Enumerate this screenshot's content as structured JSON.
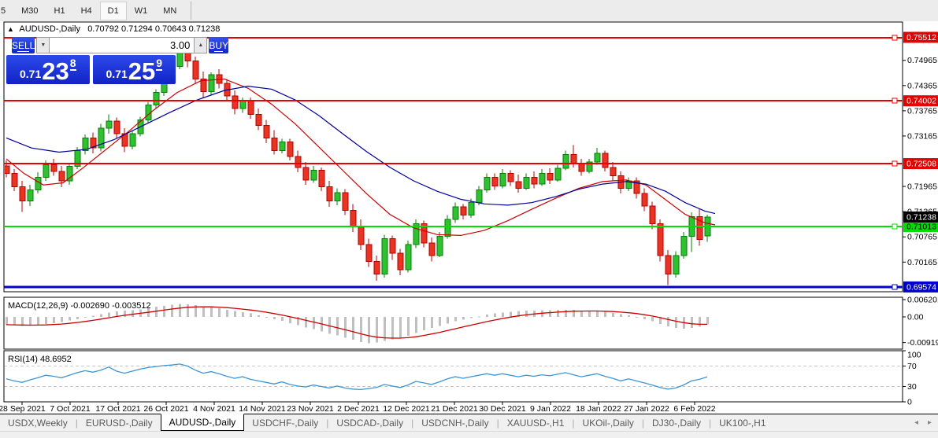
{
  "toolbar": {
    "timeframes": [
      "5",
      "M30",
      "H1",
      "H4",
      "D1",
      "W1",
      "MN"
    ],
    "active_timeframe": "D1"
  },
  "chart": {
    "title_symbol": "AUDUSD-,Daily",
    "title_ohlc": "0.70792 0.71294 0.70643 0.71238",
    "trade": {
      "sell_label": "SELL",
      "buy_label": "BUY",
      "volume": "3.00",
      "sell_prefix": "0.71",
      "sell_big": "23",
      "sell_sup": "8",
      "buy_prefix": "0.71",
      "buy_big": "25",
      "buy_sup": "9"
    },
    "macd_label": "MACD(12,26,9) -0.002690 -0.003512",
    "rsi_label": "RSI(14) 48.6952"
  },
  "chart_data": {
    "type": "candlestick",
    "symbol": "AUDUSD-,Daily",
    "ohlc_current": {
      "open": 0.70792,
      "high": 0.71294,
      "low": 0.70643,
      "close": 0.71238
    },
    "price_axis_labels": [
      "0.74965",
      "0.74365",
      "0.73765",
      "0.73165",
      "0.71965",
      "0.71365",
      "0.70765",
      "0.70165"
    ],
    "levels": [
      {
        "label": "0.75512",
        "price": 0.75512,
        "color": "#e60000",
        "text_color": "#ffffff",
        "width": 2
      },
      {
        "label": "0.74002",
        "price": 0.74002,
        "color": "#e60000",
        "text_color": "#ffffff",
        "width": 2
      },
      {
        "label": "0.72508",
        "price": 0.72508,
        "color": "#e60000",
        "text_color": "#ffffff",
        "width": 2
      },
      {
        "label": "0.71013",
        "price": 0.71013,
        "color": "#00dd00",
        "text_color": "#000000",
        "width": 2
      },
      {
        "label": "0.69574",
        "price": 0.69574,
        "color": "#0000cc",
        "text_color": "#ffffff",
        "width": 3
      }
    ],
    "current_price_tag": {
      "label": "0.71238",
      "price": 0.71238,
      "bg": "#000000",
      "text_color": "#ffffff"
    },
    "colors": {
      "bull": "#2fc12f",
      "bull_border": "#067d06",
      "bear": "#ea3323",
      "bear_border": "#b30000"
    },
    "candles": [
      [
        0.7245,
        0.7258,
        0.7218,
        0.7228
      ],
      [
        0.7228,
        0.7238,
        0.7185,
        0.7196
      ],
      [
        0.7196,
        0.721,
        0.7136,
        0.7162
      ],
      [
        0.7162,
        0.72,
        0.715,
        0.7188
      ],
      [
        0.7188,
        0.723,
        0.718,
        0.7218
      ],
      [
        0.7218,
        0.7258,
        0.721,
        0.7248
      ],
      [
        0.7248,
        0.7262,
        0.7222,
        0.7232
      ],
      [
        0.7232,
        0.7245,
        0.7195,
        0.721
      ],
      [
        0.721,
        0.7252,
        0.72,
        0.7244
      ],
      [
        0.7244,
        0.729,
        0.7238,
        0.7282
      ],
      [
        0.7282,
        0.732,
        0.7272,
        0.7312
      ],
      [
        0.7312,
        0.7325,
        0.7275,
        0.7288
      ],
      [
        0.7288,
        0.7345,
        0.728,
        0.7335
      ],
      [
        0.7335,
        0.7368,
        0.7322,
        0.7352
      ],
      [
        0.7352,
        0.736,
        0.731,
        0.7322
      ],
      [
        0.7322,
        0.7335,
        0.7278,
        0.7292
      ],
      [
        0.7292,
        0.733,
        0.7285,
        0.7322
      ],
      [
        0.7322,
        0.7362,
        0.7315,
        0.7355
      ],
      [
        0.7355,
        0.7398,
        0.7348,
        0.739
      ],
      [
        0.739,
        0.7428,
        0.7382,
        0.742
      ],
      [
        0.742,
        0.7462,
        0.7412,
        0.7452
      ],
      [
        0.7452,
        0.749,
        0.7445,
        0.7482
      ],
      [
        0.7482,
        0.7548,
        0.7475,
        0.7532
      ],
      [
        0.7532,
        0.754,
        0.748,
        0.7495
      ],
      [
        0.7495,
        0.7505,
        0.7442,
        0.7452
      ],
      [
        0.7452,
        0.747,
        0.7408,
        0.7422
      ],
      [
        0.7422,
        0.7468,
        0.7415,
        0.7462
      ],
      [
        0.7462,
        0.7475,
        0.743,
        0.7442
      ],
      [
        0.7442,
        0.7452,
        0.74,
        0.7412
      ],
      [
        0.7412,
        0.7425,
        0.7368,
        0.7382
      ],
      [
        0.7382,
        0.7408,
        0.7372,
        0.74
      ],
      [
        0.74,
        0.7408,
        0.7358,
        0.7368
      ],
      [
        0.7368,
        0.7382,
        0.733,
        0.7342
      ],
      [
        0.7342,
        0.7355,
        0.73,
        0.7312
      ],
      [
        0.7312,
        0.733,
        0.7272,
        0.7282
      ],
      [
        0.7282,
        0.731,
        0.7275,
        0.7302
      ],
      [
        0.7302,
        0.731,
        0.7258,
        0.7268
      ],
      [
        0.7268,
        0.7282,
        0.723,
        0.7242
      ],
      [
        0.7242,
        0.7255,
        0.72,
        0.7212
      ],
      [
        0.7212,
        0.7245,
        0.7205,
        0.7235
      ],
      [
        0.7235,
        0.7242,
        0.7185,
        0.7196
      ],
      [
        0.7196,
        0.721,
        0.7148,
        0.7162
      ],
      [
        0.7162,
        0.7192,
        0.7152,
        0.7182
      ],
      [
        0.7182,
        0.719,
        0.7128,
        0.714
      ],
      [
        0.714,
        0.7155,
        0.7088,
        0.71
      ],
      [
        0.71,
        0.7118,
        0.7045,
        0.7058
      ],
      [
        0.7058,
        0.7072,
        0.7005,
        0.7018
      ],
      [
        0.7018,
        0.7032,
        0.6972,
        0.6988
      ],
      [
        0.6988,
        0.7082,
        0.698,
        0.7072
      ],
      [
        0.7072,
        0.708,
        0.7022,
        0.7038
      ],
      [
        0.7038,
        0.7048,
        0.6985,
        0.6998
      ],
      [
        0.6998,
        0.7068,
        0.6992,
        0.7058
      ],
      [
        0.7058,
        0.7118,
        0.705,
        0.7108
      ],
      [
        0.7108,
        0.7115,
        0.7052,
        0.7062
      ],
      [
        0.7062,
        0.7075,
        0.7018,
        0.7032
      ],
      [
        0.7032,
        0.7088,
        0.7028,
        0.7078
      ],
      [
        0.7078,
        0.7128,
        0.7072,
        0.7118
      ],
      [
        0.7118,
        0.7158,
        0.711,
        0.7148
      ],
      [
        0.7148,
        0.7155,
        0.7118,
        0.7128
      ],
      [
        0.7128,
        0.7168,
        0.7122,
        0.7158
      ],
      [
        0.7158,
        0.7198,
        0.7152,
        0.7188
      ],
      [
        0.7188,
        0.7228,
        0.7182,
        0.7218
      ],
      [
        0.7218,
        0.7228,
        0.7188,
        0.7198
      ],
      [
        0.7198,
        0.7238,
        0.7192,
        0.7228
      ],
      [
        0.7228,
        0.7235,
        0.7198,
        0.7208
      ],
      [
        0.7208,
        0.7225,
        0.7182,
        0.7192
      ],
      [
        0.7192,
        0.7228,
        0.7188,
        0.7218
      ],
      [
        0.7218,
        0.7232,
        0.7192,
        0.7202
      ],
      [
        0.7202,
        0.7238,
        0.7198,
        0.7228
      ],
      [
        0.7228,
        0.724,
        0.7202,
        0.7212
      ],
      [
        0.7212,
        0.7248,
        0.7208,
        0.724
      ],
      [
        0.724,
        0.7282,
        0.7235,
        0.7272
      ],
      [
        0.7272,
        0.7295,
        0.7242,
        0.7252
      ],
      [
        0.7252,
        0.7262,
        0.7222,
        0.7232
      ],
      [
        0.7232,
        0.7262,
        0.7228,
        0.7255
      ],
      [
        0.7255,
        0.7288,
        0.7248,
        0.7275
      ],
      [
        0.7275,
        0.7282,
        0.7232,
        0.7242
      ],
      [
        0.7242,
        0.7255,
        0.721,
        0.7222
      ],
      [
        0.7222,
        0.7232,
        0.718,
        0.7192
      ],
      [
        0.7192,
        0.7218,
        0.7185,
        0.721
      ],
      [
        0.721,
        0.7218,
        0.7168,
        0.718
      ],
      [
        0.718,
        0.7192,
        0.7138,
        0.715
      ],
      [
        0.715,
        0.716,
        0.7095,
        0.7108
      ],
      [
        0.7108,
        0.7118,
        0.7018,
        0.7032
      ],
      [
        0.7032,
        0.7045,
        0.6962,
        0.6988
      ],
      [
        0.6988,
        0.7042,
        0.698,
        0.7032
      ],
      [
        0.7032,
        0.7088,
        0.7025,
        0.7078
      ],
      [
        0.7078,
        0.7135,
        0.704,
        0.7125
      ],
      [
        0.7125,
        0.7142,
        0.7055,
        0.707
      ],
      [
        0.70792,
        0.71294,
        0.70643,
        0.71238
      ]
    ],
    "ma_fast": {
      "color": "#cc0000",
      "points": [
        [
          8,
          0.7262
        ],
        [
          30,
          0.7228
        ],
        [
          55,
          0.72
        ],
        [
          80,
          0.7205
        ],
        [
          105,
          0.724
        ],
        [
          135,
          0.7285
        ],
        [
          165,
          0.733
        ],
        [
          195,
          0.7378
        ],
        [
          225,
          0.742
        ],
        [
          255,
          0.7448
        ],
        [
          285,
          0.7452
        ],
        [
          315,
          0.743
        ],
        [
          345,
          0.7392
        ],
        [
          375,
          0.7345
        ],
        [
          405,
          0.729
        ],
        [
          435,
          0.7235
        ],
        [
          465,
          0.718
        ],
        [
          495,
          0.713
        ],
        [
          525,
          0.7098
        ],
        [
          555,
          0.7082
        ],
        [
          585,
          0.708
        ],
        [
          615,
          0.7092
        ],
        [
          645,
          0.7115
        ],
        [
          675,
          0.7142
        ],
        [
          705,
          0.7168
        ],
        [
          735,
          0.7192
        ],
        [
          765,
          0.7208
        ],
        [
          795,
          0.7212
        ],
        [
          820,
          0.72
        ],
        [
          845,
          0.7165
        ],
        [
          870,
          0.713
        ],
        [
          895,
          0.711
        ],
        [
          908,
          0.7105
        ]
      ]
    },
    "ma_slow": {
      "color": "#000099",
      "points": [
        [
          8,
          0.7312
        ],
        [
          40,
          0.7288
        ],
        [
          75,
          0.7278
        ],
        [
          110,
          0.7285
        ],
        [
          145,
          0.7308
        ],
        [
          180,
          0.734
        ],
        [
          215,
          0.7372
        ],
        [
          250,
          0.7402
        ],
        [
          285,
          0.7425
        ],
        [
          315,
          0.7435
        ],
        [
          345,
          0.7428
        ],
        [
          375,
          0.7402
        ],
        [
          405,
          0.7365
        ],
        [
          435,
          0.7322
        ],
        [
          465,
          0.728
        ],
        [
          495,
          0.7242
        ],
        [
          525,
          0.721
        ],
        [
          555,
          0.7185
        ],
        [
          585,
          0.7166
        ],
        [
          615,
          0.7155
        ],
        [
          645,
          0.7152
        ],
        [
          675,
          0.7158
        ],
        [
          705,
          0.7172
        ],
        [
          735,
          0.719
        ],
        [
          765,
          0.7202
        ],
        [
          795,
          0.7208
        ],
        [
          820,
          0.7202
        ],
        [
          845,
          0.7185
        ],
        [
          870,
          0.7158
        ],
        [
          895,
          0.7138
        ],
        [
          908,
          0.7132
        ]
      ]
    },
    "macd": {
      "label": "MACD(12,26,9)",
      "value_labels": [
        "-0.002690",
        "-0.003512"
      ],
      "axis_labels": [
        "0.006201",
        "0.00",
        "-0.009197"
      ],
      "hist_color": "#c0c0c0",
      "signal_color": "#cc0000",
      "histogram": [
        -0.0028,
        -0.003,
        -0.0032,
        -0.0031,
        -0.0029,
        -0.0026,
        -0.0022,
        -0.0018,
        -0.0013,
        -0.0008,
        -0.0002,
        0.0004,
        0.001,
        0.0016,
        0.002,
        0.0022,
        0.0024,
        0.0027,
        0.0031,
        0.0036,
        0.004,
        0.0043,
        0.0046,
        0.0045,
        0.0042,
        0.0038,
        0.0035,
        0.0031,
        0.0026,
        0.0021,
        0.0017,
        0.0012,
        0.0006,
        0.0,
        -0.0008,
        -0.0014,
        -0.0022,
        -0.003,
        -0.0038,
        -0.0044,
        -0.0052,
        -0.006,
        -0.0066,
        -0.0074,
        -0.0082,
        -0.009,
        -0.0095,
        -0.0092,
        -0.0086,
        -0.008,
        -0.0076,
        -0.0068,
        -0.0058,
        -0.0048,
        -0.004,
        -0.0032,
        -0.0024,
        -0.0016,
        -0.001,
        -0.0004,
        0.0002,
        0.0008,
        0.0012,
        0.0016,
        0.0019,
        0.0021,
        0.0022,
        0.0023,
        0.0024,
        0.0024,
        0.0025,
        0.0026,
        0.0025,
        0.0023,
        0.0022,
        0.0021,
        0.0018,
        0.0014,
        0.001,
        0.0006,
        0.0,
        -0.0008,
        -0.0016,
        -0.0026,
        -0.0034,
        -0.004,
        -0.0042,
        -0.004,
        -0.0035,
        -0.0027
      ]
    },
    "rsi": {
      "label": "RSI(14)",
      "value_label": "48.6952",
      "axis_labels": [
        "100",
        "70",
        "30",
        "0"
      ],
      "guide_levels": [
        70,
        30
      ],
      "color": "#3f95d4",
      "values": [
        45,
        41,
        38,
        43,
        47,
        52,
        50,
        47,
        52,
        57,
        61,
        58,
        62,
        68,
        60,
        56,
        60,
        64,
        67,
        69,
        71,
        72,
        74,
        70,
        62,
        56,
        59,
        55,
        50,
        46,
        49,
        44,
        41,
        38,
        35,
        39,
        34,
        31,
        29,
        33,
        30,
        27,
        31,
        27,
        25,
        24,
        26,
        28,
        34,
        31,
        28,
        33,
        40,
        37,
        34,
        39,
        45,
        49,
        46,
        49,
        52,
        55,
        52,
        55,
        52,
        49,
        52,
        50,
        53,
        51,
        54,
        57,
        53,
        49,
        52,
        55,
        50,
        46,
        41,
        45,
        41,
        37,
        33,
        28,
        25,
        27,
        33,
        41,
        44,
        48.7
      ]
    },
    "date_labels": [
      "28 Sep 2021",
      "7 Oct 2021",
      "17 Oct 2021",
      "26 Oct 2021",
      "4 Nov 2021",
      "14 Nov 2021",
      "23 Nov 2021",
      "2 Dec 2021",
      "12 Dec 2021",
      "21 Dec 2021",
      "30 Dec 2021",
      "9 Jan 2022",
      "18 Jan 2022",
      "27 Jan 2022",
      "6 Feb 2022"
    ]
  },
  "tabs": {
    "items": [
      "USDX,Weekly",
      "EURUSD-,Daily",
      "AUDUSD-,Daily",
      "USDCHF-,Daily",
      "USDCAD-,Daily",
      "USDCNH-,Daily",
      "XAUUSD-,H1",
      "UKOil-,Daily",
      "DJ30-,Daily",
      "UK100-,H1"
    ],
    "active": "AUDUSD-,Daily",
    "scroll_left_icon": "◂",
    "scroll_right_icon": "▸"
  }
}
